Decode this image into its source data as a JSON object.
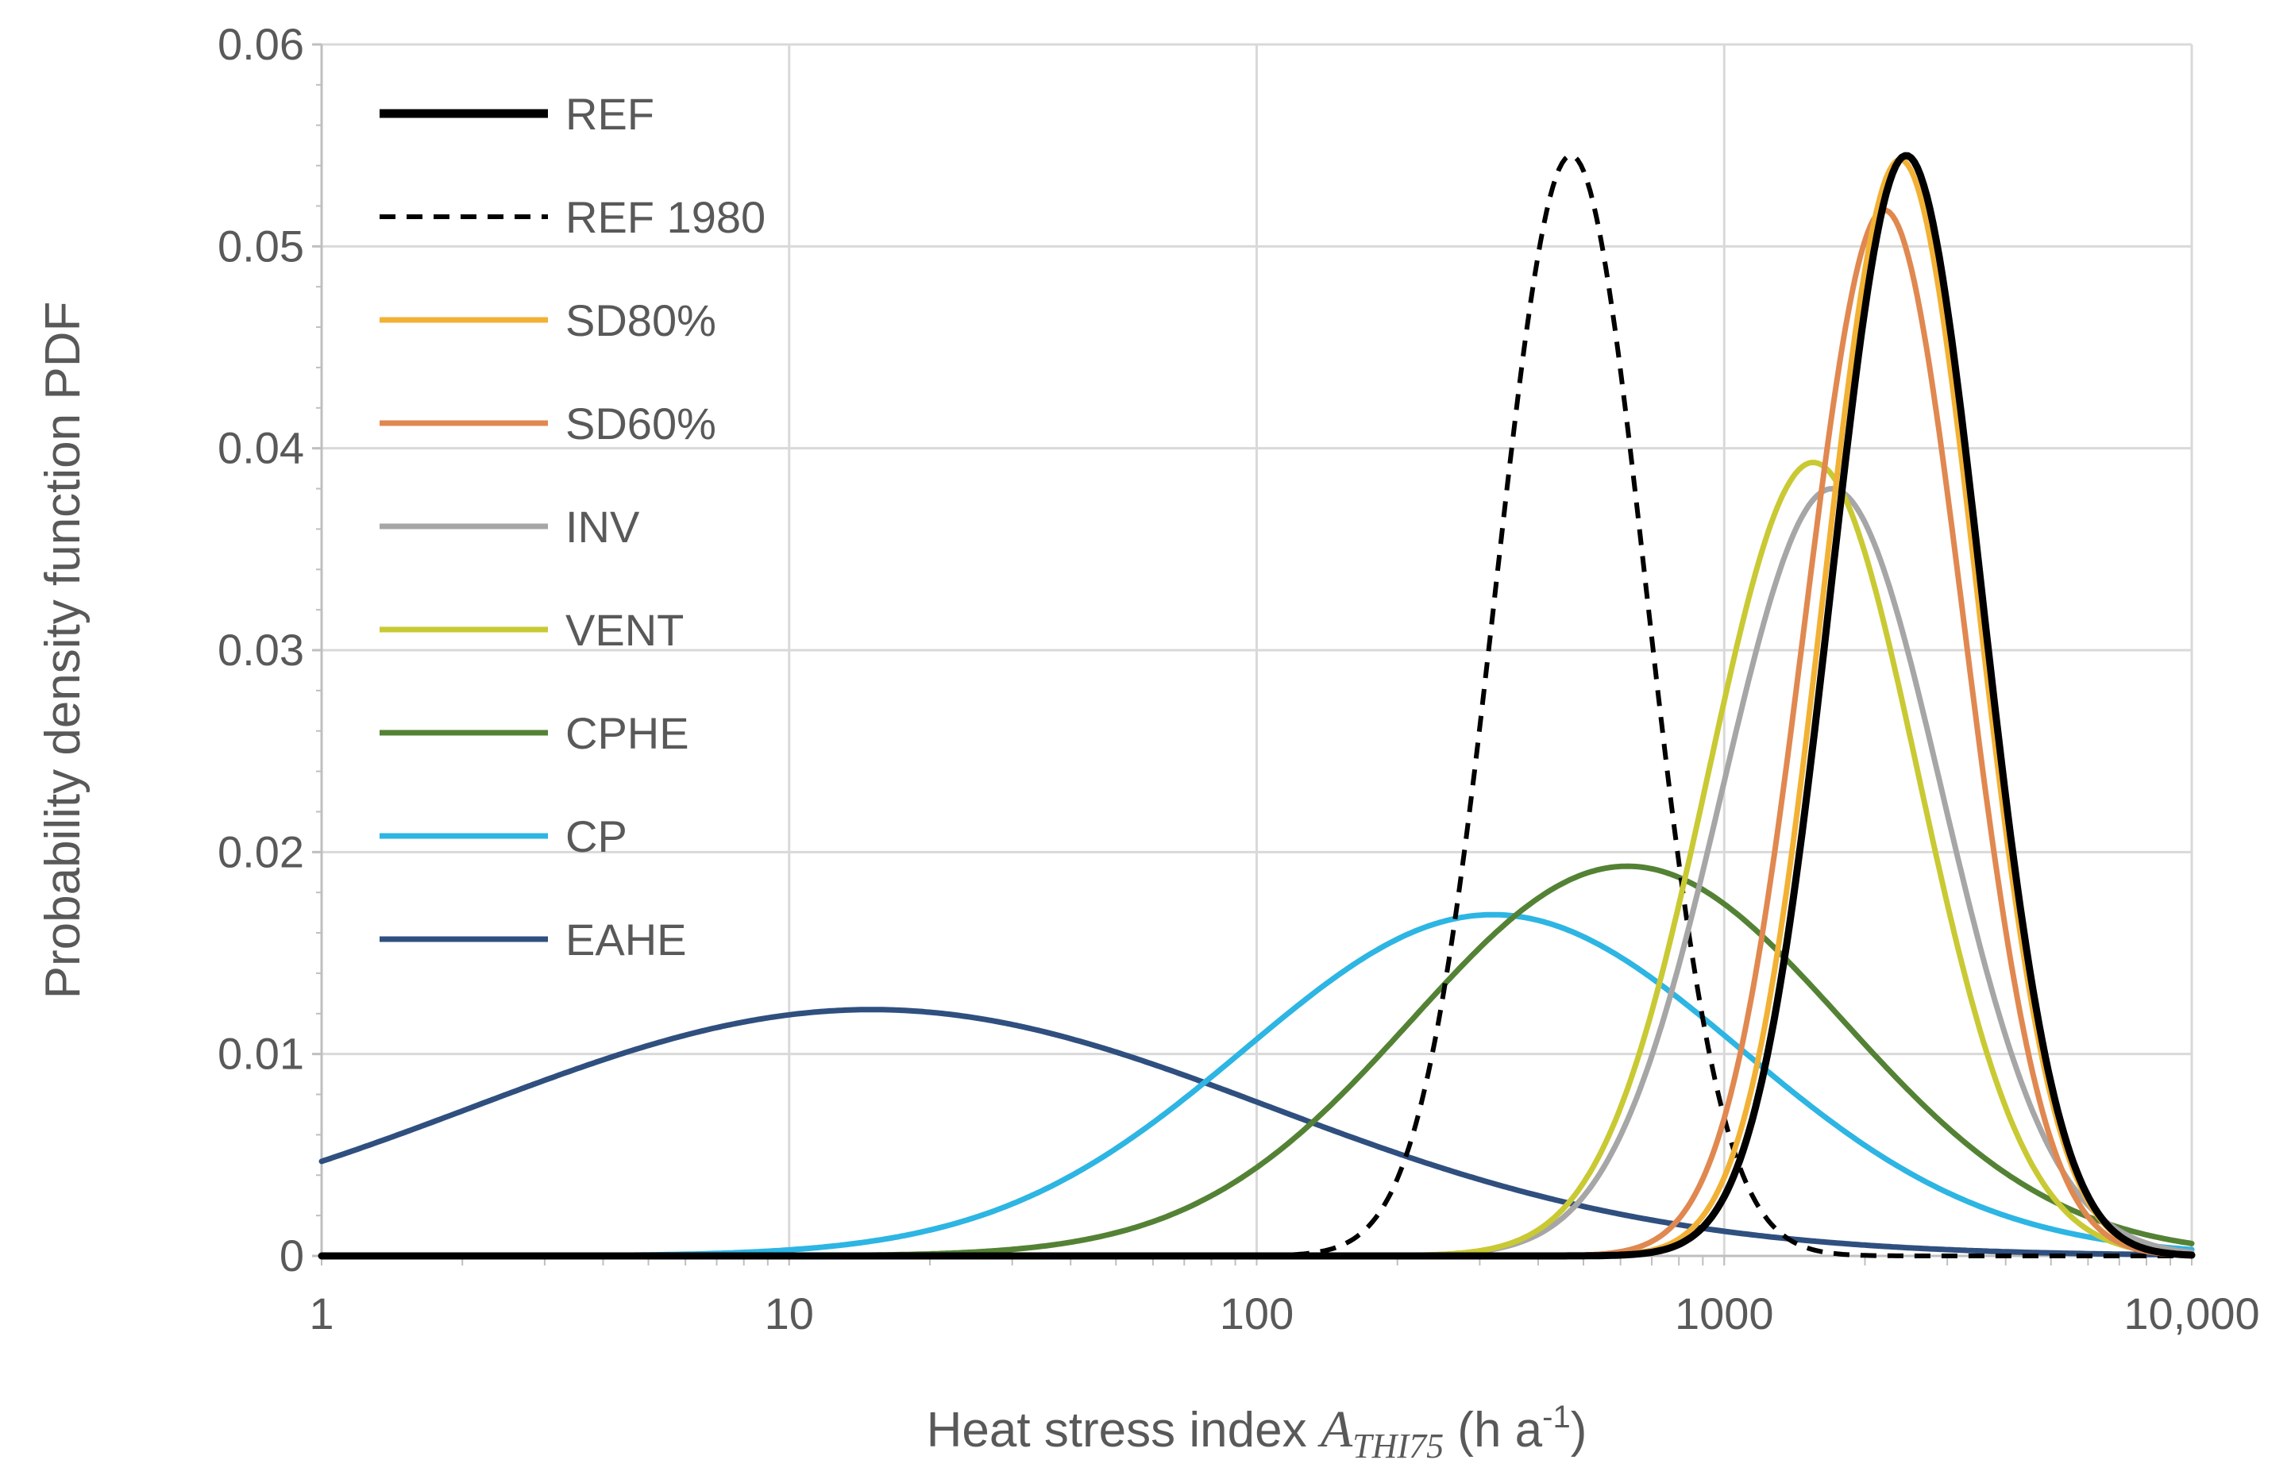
{
  "chart_data": {
    "type": "line",
    "title": "",
    "xscale": "log",
    "xlim": [
      1,
      10000
    ],
    "ylim": [
      0,
      0.06
    ],
    "grid": true,
    "legend_position": "top-left",
    "xlabel": {
      "prefix": "Heat stress index ",
      "symbol": "A",
      "subscript": "THI75",
      "unit_open": "  (h a",
      "unit_sup": "-1",
      "unit_close": ")"
    },
    "ylabel": "Probability density function PDF",
    "xticks": [
      {
        "value": 1,
        "label": "1"
      },
      {
        "value": 10,
        "label": "10"
      },
      {
        "value": 100,
        "label": "100"
      },
      {
        "value": 1000,
        "label": "1000"
      },
      {
        "value": 10000,
        "label": "10,000"
      }
    ],
    "yticks": [
      {
        "value": 0,
        "label": "0"
      },
      {
        "value": 0.01,
        "label": "0.01"
      },
      {
        "value": 0.02,
        "label": "0.02"
      },
      {
        "value": 0.03,
        "label": "0.03"
      },
      {
        "value": 0.04,
        "label": "0.04"
      },
      {
        "value": 0.05,
        "label": "0.05"
      },
      {
        "value": 0.06,
        "label": "0.06"
      }
    ],
    "series": [
      {
        "name": "REF",
        "color": "#000000",
        "width": 9,
        "dash": "",
        "peak_x": 2450,
        "peak_y": 0.0545,
        "log_sigma": 0.161
      },
      {
        "name": "REF 1980",
        "color": "#000000",
        "width": 6,
        "dash": "20 14",
        "peak_x": 470,
        "peak_y": 0.0545,
        "log_sigma": 0.161
      },
      {
        "name": "SD80%",
        "color": "#F2B134",
        "width": 7,
        "dash": "",
        "peak_x": 2380,
        "peak_y": 0.0543,
        "log_sigma": 0.164
      },
      {
        "name": "SD60%",
        "color": "#E08850",
        "width": 7,
        "dash": "",
        "peak_x": 2200,
        "peak_y": 0.0518,
        "log_sigma": 0.17
      },
      {
        "name": "INV",
        "color": "#A6A6A6",
        "width": 7,
        "dash": "",
        "peak_x": 1700,
        "peak_y": 0.038,
        "log_sigma": 0.235
      },
      {
        "name": "VENT",
        "color": "#C9C934",
        "width": 7,
        "dash": "",
        "peak_x": 1550,
        "peak_y": 0.0393,
        "log_sigma": 0.225
      },
      {
        "name": "CPHE",
        "color": "#548235",
        "width": 7,
        "dash": "",
        "peak_x": 620,
        "peak_y": 0.0193,
        "log_sigma": 0.46
      },
      {
        "name": "CP",
        "color": "#2DB5E3",
        "width": 7,
        "dash": "",
        "peak_x": 320,
        "peak_y": 0.0169,
        "log_sigma": 0.53
      },
      {
        "name": "EAHE",
        "color": "#2F4F7F",
        "width": 7,
        "dash": "",
        "peak_x": 15,
        "peak_y": 0.0122,
        "log_sigma": 0.85
      }
    ]
  }
}
